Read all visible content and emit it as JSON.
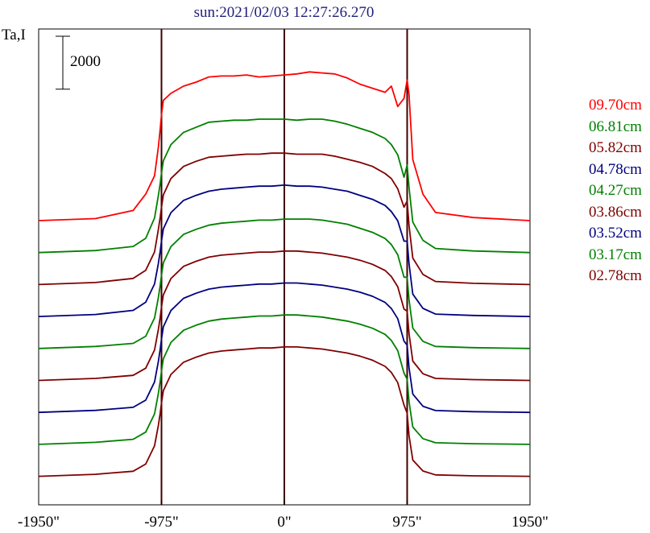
{
  "title": "sun:2021/02/03 12:27:26.270",
  "y_axis_label": "Ta,I",
  "scale_bar_label": "2000",
  "colors": {
    "red": "#ff0000",
    "green": "#008000",
    "darkred": "#800000",
    "navy": "#000080",
    "axis": "#000000",
    "marker": "#400000"
  },
  "chart_data": {
    "type": "line",
    "title": "sun:2021/02/03 12:27:26.270",
    "ylabel": "Ta,I",
    "xlim": [
      -1950,
      1950
    ],
    "x_ticks": [
      -1950,
      -975,
      0,
      975,
      1950
    ],
    "x_tick_labels": [
      "-1950\"",
      "-975\"",
      "0\"",
      "975\"",
      "1950\""
    ],
    "vertical_markers": [
      -975,
      0,
      975
    ],
    "scale_bar": 2000,
    "legend_position": "right",
    "grid": false,
    "profile_x": [
      -1950,
      -1500,
      -1200,
      -1100,
      -1030,
      -1000,
      -985,
      -975,
      -960,
      -900,
      -800,
      -700,
      -600,
      -500,
      -400,
      -300,
      -200,
      -100,
      0,
      100,
      200,
      300,
      400,
      500,
      600,
      700,
      800,
      850,
      900,
      950,
      975,
      990,
      1020,
      1100,
      1200,
      1500,
      1950
    ],
    "series": [
      {
        "name": "09.70cm",
        "color": "#ff0000",
        "offset": 0,
        "values": [
          0,
          100,
          500,
          1300,
          2200,
          3600,
          4500,
          5200,
          5900,
          6250,
          6600,
          6800,
          7050,
          7100,
          7100,
          7150,
          7050,
          7100,
          7150,
          7200,
          7300,
          7250,
          7200,
          7000,
          6700,
          6500,
          6300,
          6600,
          5600,
          6000,
          6900,
          6200,
          3000,
          1300,
          400,
          150,
          0
        ]
      },
      {
        "name": "06.81cm",
        "color": "#008000",
        "offset": -1,
        "values": [
          0,
          100,
          300,
          700,
          1700,
          2800,
          3400,
          3900,
          4500,
          5300,
          5900,
          6150,
          6400,
          6450,
          6500,
          6500,
          6550,
          6550,
          6550,
          6500,
          6550,
          6550,
          6450,
          6300,
          6100,
          5900,
          5600,
          5300,
          4800,
          3700,
          4300,
          3200,
          1500,
          600,
          200,
          80,
          0
        ]
      },
      {
        "name": "05.82cm",
        "color": "#800000",
        "offset": -2,
        "values": [
          0,
          100,
          300,
          700,
          1600,
          2700,
          3300,
          3800,
          4400,
          5200,
          5800,
          6050,
          6250,
          6300,
          6350,
          6400,
          6400,
          6450,
          6450,
          6400,
          6400,
          6400,
          6300,
          6150,
          6000,
          5800,
          5450,
          5200,
          4700,
          3800,
          4100,
          2900,
          1300,
          500,
          150,
          60,
          0
        ]
      },
      {
        "name": "04.78cm",
        "color": "#000080",
        "offset": -3,
        "values": [
          0,
          100,
          300,
          700,
          1600,
          2600,
          3200,
          3700,
          4300,
          5100,
          5700,
          5950,
          6150,
          6250,
          6300,
          6350,
          6400,
          6400,
          6450,
          6400,
          6400,
          6350,
          6250,
          6150,
          5950,
          5750,
          5450,
          5150,
          4700,
          3700,
          3700,
          2600,
          1100,
          400,
          120,
          50,
          0
        ]
      },
      {
        "name": "04.27cm",
        "color": "#008000",
        "offset": -4,
        "values": [
          0,
          100,
          250,
          600,
          1500,
          2500,
          3100,
          3600,
          4200,
          5000,
          5600,
          5850,
          6050,
          6150,
          6200,
          6250,
          6300,
          6300,
          6350,
          6350,
          6350,
          6300,
          6200,
          6100,
          5900,
          5700,
          5400,
          5100,
          4600,
          3500,
          3500,
          2400,
          1000,
          350,
          100,
          40,
          0
        ]
      },
      {
        "name": "03.86cm",
        "color": "#800000",
        "offset": -5,
        "values": [
          0,
          100,
          250,
          600,
          1500,
          2500,
          3100,
          3600,
          4200,
          5000,
          5600,
          5850,
          6050,
          6150,
          6200,
          6250,
          6300,
          6300,
          6350,
          6350,
          6300,
          6250,
          6150,
          6050,
          5900,
          5700,
          5400,
          5100,
          4600,
          3500,
          3400,
          2300,
          950,
          330,
          100,
          40,
          0
        ]
      },
      {
        "name": "03.52cm",
        "color": "#000080",
        "offset": -6,
        "values": [
          0,
          100,
          250,
          600,
          1500,
          2500,
          3100,
          3600,
          4200,
          5000,
          5600,
          5850,
          6050,
          6150,
          6200,
          6250,
          6300,
          6300,
          6350,
          6350,
          6300,
          6250,
          6150,
          6050,
          5900,
          5700,
          5400,
          5100,
          4600,
          3500,
          3300,
          2200,
          900,
          300,
          90,
          35,
          0
        ]
      },
      {
        "name": "03.17cm",
        "color": "#008000",
        "offset": -7,
        "values": [
          0,
          100,
          250,
          600,
          1500,
          2500,
          3100,
          3600,
          4200,
          5000,
          5600,
          5850,
          6050,
          6150,
          6200,
          6250,
          6300,
          6300,
          6350,
          6350,
          6300,
          6250,
          6150,
          6050,
          5900,
          5700,
          5400,
          5100,
          4600,
          3500,
          3200,
          2100,
          850,
          280,
          80,
          30,
          0
        ]
      },
      {
        "name": "02.78cm",
        "color": "#800000",
        "offset": -8,
        "values": [
          0,
          100,
          250,
          600,
          1500,
          2500,
          3100,
          3600,
          4200,
          5000,
          5600,
          5850,
          6050,
          6150,
          6200,
          6250,
          6300,
          6300,
          6350,
          6350,
          6300,
          6250,
          6150,
          6050,
          5900,
          5700,
          5400,
          5100,
          4600,
          3500,
          3100,
          2000,
          800,
          260,
          70,
          25,
          0
        ]
      }
    ]
  }
}
